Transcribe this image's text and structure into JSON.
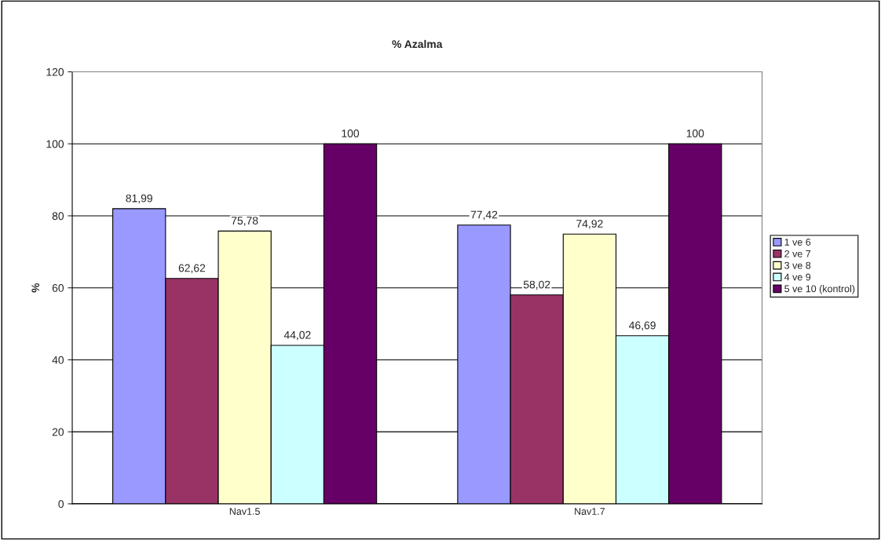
{
  "chart_data": {
    "type": "bar",
    "title": "% Azalma",
    "ylabel": "%",
    "categories": [
      "Nav1.5",
      "Nav1.7"
    ],
    "series": [
      {
        "name": "1 ve 6",
        "color": "#9999ff",
        "values": [
          81.99,
          77.42
        ],
        "value_labels": [
          "81,99",
          "77,42"
        ]
      },
      {
        "name": "2 ve 7",
        "color": "#993366",
        "values": [
          62.62,
          58.02
        ],
        "value_labels": [
          "62,62",
          "58,02"
        ]
      },
      {
        "name": "3 ve 8",
        "color": "#ffffcc",
        "values": [
          75.78,
          74.92
        ],
        "value_labels": [
          "75,78",
          "74,92"
        ]
      },
      {
        "name": "4 ve 9",
        "color": "#ccffff",
        "values": [
          44.02,
          46.69
        ],
        "value_labels": [
          "44,02",
          "46,69"
        ]
      },
      {
        "name": "5 ve 10 (kontrol)",
        "color": "#660066",
        "values": [
          100,
          100
        ],
        "value_labels": [
          "100",
          "100"
        ]
      }
    ],
    "ylim": [
      0,
      120
    ],
    "yticks": [
      0,
      20,
      40,
      60,
      80,
      100,
      120
    ],
    "grid": "y",
    "legend": "right"
  }
}
